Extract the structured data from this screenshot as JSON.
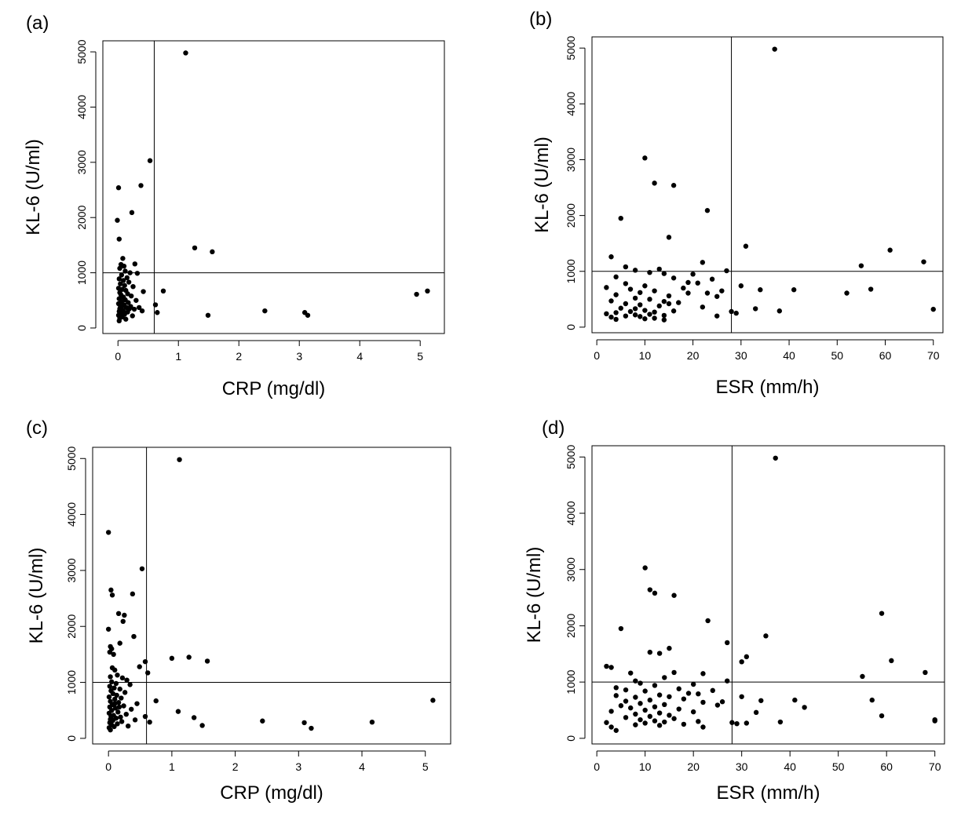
{
  "figure": {
    "background": "#ffffff",
    "point_color": "#000000",
    "line_color": "#000000"
  },
  "chart_data": [
    {
      "type": "scatter",
      "panel": "(a)",
      "title": "",
      "xlabel": "CRP (mg/dl)",
      "ylabel": "KL-6 (U/ml)",
      "xlim": [
        -0.25,
        5.4
      ],
      "ylim": [
        -100,
        5200
      ],
      "xticks": [
        0,
        1,
        2,
        3,
        4,
        5
      ],
      "yticks": [
        0,
        1000,
        2000,
        3000,
        4000,
        5000
      ],
      "xtick_labels": [
        "0",
        "1",
        "2",
        "3",
        "4",
        "5"
      ],
      "ytick_labels": [
        "0",
        "1000",
        "2000",
        "3000",
        "4000",
        "5000"
      ],
      "cutoff_x": 0.6,
      "cutoff_y": 1000,
      "points": [
        [
          1.12,
          4980
        ],
        [
          0.53,
          3030
        ],
        [
          0.01,
          2540
        ],
        [
          0.38,
          2580
        ],
        [
          0.23,
          2090
        ],
        [
          -0.01,
          1950
        ],
        [
          0.02,
          1610
        ],
        [
          1.27,
          1450
        ],
        [
          1.56,
          1380
        ],
        [
          0.08,
          1260
        ],
        [
          0.05,
          1150
        ],
        [
          0.1,
          1120
        ],
        [
          0.28,
          1160
        ],
        [
          0.03,
          1080
        ],
        [
          0.12,
          1030
        ],
        [
          0.2,
          1000
        ],
        [
          0.32,
          990
        ],
        [
          0.06,
          960
        ],
        [
          0.15,
          910
        ],
        [
          0.02,
          890
        ],
        [
          0.09,
          860
        ],
        [
          0.18,
          830
        ],
        [
          0.04,
          800
        ],
        [
          0.11,
          770
        ],
        [
          0.25,
          750
        ],
        [
          0.01,
          720
        ],
        [
          0.07,
          700
        ],
        [
          0.13,
          680
        ],
        [
          0.42,
          660
        ],
        [
          0.75,
          670
        ],
        [
          0.03,
          640
        ],
        [
          0.16,
          620
        ],
        [
          0.05,
          600
        ],
        [
          0.22,
          580
        ],
        [
          0.09,
          560
        ],
        [
          0.02,
          530
        ],
        [
          0.12,
          510
        ],
        [
          0.3,
          500
        ],
        [
          0.06,
          480
        ],
        [
          0.17,
          460
        ],
        [
          0.01,
          440
        ],
        [
          0.1,
          420
        ],
        [
          0.04,
          400
        ],
        [
          0.21,
          390
        ],
        [
          0.62,
          420
        ],
        [
          0.14,
          370
        ],
        [
          0.03,
          350
        ],
        [
          0.27,
          340
        ],
        [
          0.08,
          320
        ],
        [
          0.4,
          310
        ],
        [
          0.02,
          300
        ],
        [
          0.16,
          290
        ],
        [
          0.05,
          270
        ],
        [
          0.65,
          280
        ],
        [
          0.11,
          250
        ],
        [
          0.01,
          230
        ],
        [
          0.24,
          220
        ],
        [
          0.07,
          200
        ],
        [
          0.03,
          180
        ],
        [
          0.13,
          160
        ],
        [
          0.02,
          130
        ],
        [
          0.09,
          300
        ],
        [
          0.19,
          350
        ],
        [
          0.35,
          370
        ],
        [
          0.06,
          380
        ],
        [
          1.49,
          230
        ],
        [
          2.43,
          310
        ],
        [
          3.09,
          280
        ],
        [
          3.14,
          230
        ],
        [
          4.94,
          610
        ],
        [
          5.12,
          670
        ]
      ]
    },
    {
      "type": "scatter",
      "panel": "(b)",
      "title": "",
      "xlabel": "ESR (mm/h)",
      "ylabel": "KL-6 (U/ml)",
      "xlim": [
        -1,
        72
      ],
      "ylim": [
        -100,
        5200
      ],
      "xticks": [
        0,
        10,
        20,
        30,
        40,
        50,
        60,
        70
      ],
      "yticks": [
        0,
        1000,
        2000,
        3000,
        4000,
        5000
      ],
      "xtick_labels": [
        "0",
        "10",
        "20",
        "30",
        "40",
        "50",
        "60",
        "70"
      ],
      "ytick_labels": [
        "0",
        "1000",
        "2000",
        "3000",
        "4000",
        "5000"
      ],
      "cutoff_x": 28,
      "cutoff_y": 1000,
      "points": [
        [
          37,
          4980
        ],
        [
          10,
          3030
        ],
        [
          12,
          2580
        ],
        [
          16,
          2540
        ],
        [
          23,
          2090
        ],
        [
          5,
          1950
        ],
        [
          15,
          1610
        ],
        [
          31,
          1450
        ],
        [
          61,
          1380
        ],
        [
          3,
          1260
        ],
        [
          68,
          1170
        ],
        [
          22,
          1160
        ],
        [
          55,
          1100
        ],
        [
          6,
          1080
        ],
        [
          13,
          1040
        ],
        [
          8,
          1020
        ],
        [
          27,
          1010
        ],
        [
          11,
          980
        ],
        [
          14,
          960
        ],
        [
          20,
          950
        ],
        [
          4,
          900
        ],
        [
          16,
          880
        ],
        [
          24,
          860
        ],
        [
          19,
          800
        ],
        [
          21,
          790
        ],
        [
          6,
          780
        ],
        [
          10,
          740
        ],
        [
          30,
          740
        ],
        [
          2,
          710
        ],
        [
          18,
          700
        ],
        [
          7,
          680
        ],
        [
          34,
          670
        ],
        [
          41,
          670
        ],
        [
          57,
          680
        ],
        [
          12,
          650
        ],
        [
          9,
          620
        ],
        [
          23,
          610
        ],
        [
          52,
          610
        ],
        [
          4,
          580
        ],
        [
          15,
          560
        ],
        [
          25,
          550
        ],
        [
          8,
          520
        ],
        [
          11,
          500
        ],
        [
          3,
          470
        ],
        [
          14,
          460
        ],
        [
          17,
          440
        ],
        [
          6,
          420
        ],
        [
          9,
          400
        ],
        [
          13,
          380
        ],
        [
          22,
          360
        ],
        [
          5,
          340
        ],
        [
          8,
          330
        ],
        [
          33,
          330
        ],
        [
          10,
          300
        ],
        [
          16,
          290
        ],
        [
          38,
          290
        ],
        [
          70,
          320
        ],
        [
          7,
          280
        ],
        [
          12,
          270
        ],
        [
          28,
          280
        ],
        [
          4,
          260
        ],
        [
          29,
          250
        ],
        [
          11,
          230
        ],
        [
          2,
          240
        ],
        [
          14,
          210
        ],
        [
          6,
          200
        ],
        [
          9,
          190
        ],
        [
          25,
          200
        ],
        [
          3,
          180
        ],
        [
          12,
          160
        ],
        [
          4,
          140
        ],
        [
          10,
          150
        ],
        [
          14,
          130
        ],
        [
          8,
          220
        ],
        [
          15,
          420
        ],
        [
          19,
          610
        ],
        [
          26,
          650
        ]
      ]
    },
    {
      "type": "scatter",
      "panel": "(c)",
      "title": "",
      "xlabel": "CRP (mg/dl)",
      "ylabel": "KL-6 (U/ml)",
      "xlim": [
        -0.25,
        5.4
      ],
      "ylim": [
        -100,
        5200
      ],
      "xticks": [
        0,
        1,
        2,
        3,
        4,
        5
      ],
      "yticks": [
        0,
        1000,
        2000,
        3000,
        4000,
        5000
      ],
      "xtick_labels": [
        "0",
        "1",
        "2",
        "3",
        "4",
        "5"
      ],
      "ytick_labels": [
        "0",
        "1000",
        "2000",
        "3000",
        "4000",
        "5000"
      ],
      "cutoff_x": 0.6,
      "cutoff_y": 1000,
      "points": [
        [
          1.12,
          4980
        ],
        [
          0.0,
          3680
        ],
        [
          0.53,
          3030
        ],
        [
          0.04,
          2650
        ],
        [
          0.06,
          2560
        ],
        [
          0.38,
          2580
        ],
        [
          0.16,
          2230
        ],
        [
          0.25,
          2200
        ],
        [
          0.23,
          2090
        ],
        [
          0.0,
          1950
        ],
        [
          0.4,
          1820
        ],
        [
          0.18,
          1700
        ],
        [
          0.03,
          1640
        ],
        [
          0.05,
          1600
        ],
        [
          0.02,
          1540
        ],
        [
          0.08,
          1500
        ],
        [
          0.58,
          1370
        ],
        [
          1.27,
          1450
        ],
        [
          1.0,
          1430
        ],
        [
          1.56,
          1380
        ],
        [
          0.49,
          1280
        ],
        [
          0.06,
          1260
        ],
        [
          0.1,
          1220
        ],
        [
          0.62,
          1170
        ],
        [
          0.14,
          1130
        ],
        [
          0.03,
          1100
        ],
        [
          0.22,
          1080
        ],
        [
          0.29,
          1040
        ],
        [
          0.05,
          1010
        ],
        [
          0.12,
          980
        ],
        [
          0.34,
          960
        ],
        [
          0.02,
          930
        ],
        [
          0.09,
          900
        ],
        [
          0.18,
          880
        ],
        [
          0.04,
          850
        ],
        [
          0.26,
          820
        ],
        [
          0.07,
          800
        ],
        [
          0.13,
          770
        ],
        [
          0.01,
          740
        ],
        [
          0.2,
          720
        ],
        [
          0.1,
          700
        ],
        [
          0.75,
          670
        ],
        [
          5.12,
          680
        ],
        [
          0.03,
          660
        ],
        [
          0.16,
          640
        ],
        [
          0.45,
          620
        ],
        [
          0.06,
          600
        ],
        [
          0.24,
          580
        ],
        [
          0.02,
          560
        ],
        [
          0.11,
          540
        ],
        [
          0.36,
          520
        ],
        [
          0.05,
          500
        ],
        [
          1.1,
          480
        ],
        [
          0.15,
          470
        ],
        [
          0.01,
          450
        ],
        [
          0.28,
          430
        ],
        [
          0.08,
          410
        ],
        [
          0.04,
          390
        ],
        [
          0.19,
          380
        ],
        [
          0.58,
          390
        ],
        [
          0.12,
          360
        ],
        [
          1.35,
          370
        ],
        [
          0.03,
          340
        ],
        [
          0.42,
          330
        ],
        [
          0.07,
          320
        ],
        [
          0.21,
          300
        ],
        [
          0.65,
          290
        ],
        [
          0.02,
          280
        ],
        [
          0.14,
          260
        ],
        [
          0.05,
          240
        ],
        [
          1.48,
          230
        ],
        [
          0.31,
          220
        ],
        [
          0.09,
          210
        ],
        [
          0.01,
          190
        ],
        [
          0.03,
          150
        ],
        [
          2.43,
          310
        ],
        [
          3.09,
          280
        ],
        [
          3.2,
          180
        ],
        [
          4.16,
          290
        ],
        [
          0.17,
          560
        ],
        [
          0.1,
          620
        ]
      ]
    },
    {
      "type": "scatter",
      "panel": "(d)",
      "title": "",
      "xlabel": "ESR (mm/h)",
      "ylabel": "KL-6 (U/ml)",
      "xlim": [
        -1,
        72
      ],
      "ylim": [
        -100,
        5200
      ],
      "xticks": [
        0,
        10,
        20,
        30,
        40,
        50,
        60,
        70
      ],
      "yticks": [
        0,
        1000,
        2000,
        3000,
        4000,
        5000
      ],
      "xtick_labels": [
        "0",
        "10",
        "20",
        "30",
        "40",
        "50",
        "60",
        "70"
      ],
      "ytick_labels": [
        "0",
        "1000",
        "2000",
        "3000",
        "4000",
        "5000"
      ],
      "cutoff_x": 28,
      "cutoff_y": 1000,
      "points": [
        [
          37,
          4980
        ],
        [
          10,
          3030
        ],
        [
          11,
          2640
        ],
        [
          12,
          2580
        ],
        [
          16,
          2540
        ],
        [
          59,
          2220
        ],
        [
          23,
          2090
        ],
        [
          5,
          1950
        ],
        [
          35,
          1820
        ],
        [
          27,
          1700
        ],
        [
          15,
          1600
        ],
        [
          11,
          1530
        ],
        [
          13,
          1510
        ],
        [
          31,
          1450
        ],
        [
          30,
          1360
        ],
        [
          61,
          1380
        ],
        [
          2,
          1280
        ],
        [
          3,
          1260
        ],
        [
          68,
          1170
        ],
        [
          7,
          1160
        ],
        [
          16,
          1170
        ],
        [
          22,
          1150
        ],
        [
          55,
          1100
        ],
        [
          14,
          1080
        ],
        [
          8,
          1020
        ],
        [
          27,
          1020
        ],
        [
          9,
          980
        ],
        [
          20,
          960
        ],
        [
          12,
          940
        ],
        [
          4,
          900
        ],
        [
          17,
          880
        ],
        [
          6,
          860
        ],
        [
          24,
          850
        ],
        [
          10,
          840
        ],
        [
          19,
          800
        ],
        [
          21,
          790
        ],
        [
          13,
          770
        ],
        [
          4,
          760
        ],
        [
          15,
          740
        ],
        [
          30,
          740
        ],
        [
          8,
          730
        ],
        [
          18,
          700
        ],
        [
          11,
          680
        ],
        [
          34,
          670
        ],
        [
          41,
          680
        ],
        [
          57,
          680
        ],
        [
          6,
          660
        ],
        [
          22,
          640
        ],
        [
          9,
          620
        ],
        [
          14,
          600
        ],
        [
          5,
          580
        ],
        [
          25,
          590
        ],
        [
          12,
          560
        ],
        [
          43,
          550
        ],
        [
          7,
          540
        ],
        [
          17,
          520
        ],
        [
          10,
          500
        ],
        [
          3,
          480
        ],
        [
          20,
          470
        ],
        [
          13,
          450
        ],
        [
          8,
          430
        ],
        [
          15,
          410
        ],
        [
          33,
          460
        ],
        [
          11,
          390
        ],
        [
          6,
          370
        ],
        [
          16,
          350
        ],
        [
          59,
          400
        ],
        [
          9,
          330
        ],
        [
          12,
          310
        ],
        [
          21,
          300
        ],
        [
          14,
          290
        ],
        [
          28,
          280
        ],
        [
          38,
          290
        ],
        [
          70,
          310
        ],
        [
          29,
          260
        ],
        [
          18,
          250
        ],
        [
          2,
          280
        ],
        [
          8,
          240
        ],
        [
          13,
          230
        ],
        [
          22,
          200
        ],
        [
          3,
          200
        ],
        [
          4,
          140
        ],
        [
          10,
          270
        ],
        [
          31,
          270
        ],
        [
          26,
          650
        ],
        [
          70,
          330
        ]
      ]
    }
  ]
}
